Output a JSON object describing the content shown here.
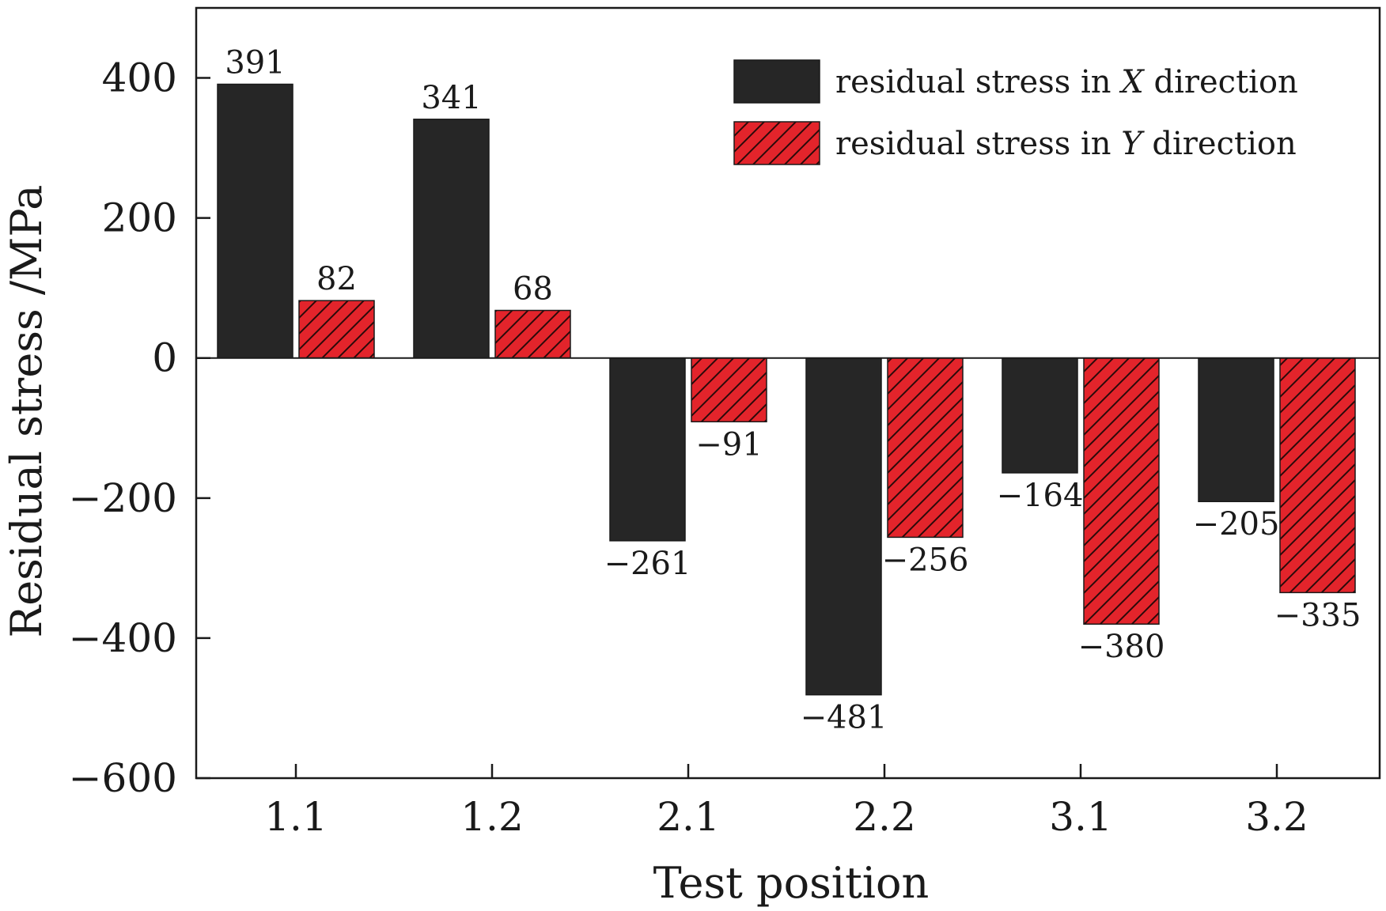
{
  "chart_data": {
    "type": "bar",
    "title": "",
    "xlabel": "Test position",
    "ylabel": "Residual stress /MPa",
    "categories": [
      "1.1",
      "1.2",
      "2.1",
      "2.2",
      "3.1",
      "3.2"
    ],
    "ylim": [
      -600,
      500
    ],
    "yticks": [
      -600,
      -400,
      -200,
      0,
      200,
      400
    ],
    "ytick_labels": [
      "−600",
      "−400",
      "−200",
      "0",
      "200",
      "400"
    ],
    "grid": false,
    "legend_position": "top-right",
    "series": [
      {
        "name": "residual stress in X direction",
        "legend_prefix": "residual stress in ",
        "legend_var": "X",
        "legend_suffix": " direction",
        "color": "#262626",
        "pattern": "solid",
        "values": [
          391,
          341,
          -261,
          -481,
          -164,
          -205
        ],
        "labels": [
          "391",
          "341",
          "−261",
          "−481",
          "−164",
          "−205"
        ]
      },
      {
        "name": "residual stress in Y direction",
        "legend_prefix": "residual stress in ",
        "legend_var": "Y",
        "legend_suffix": " direction",
        "color": "#e3242b",
        "pattern": "hatched",
        "values": [
          82,
          68,
          -91,
          -256,
          -380,
          -335
        ],
        "labels": [
          "82",
          "68",
          "−91",
          "−256",
          "−380",
          "−335"
        ]
      }
    ]
  }
}
